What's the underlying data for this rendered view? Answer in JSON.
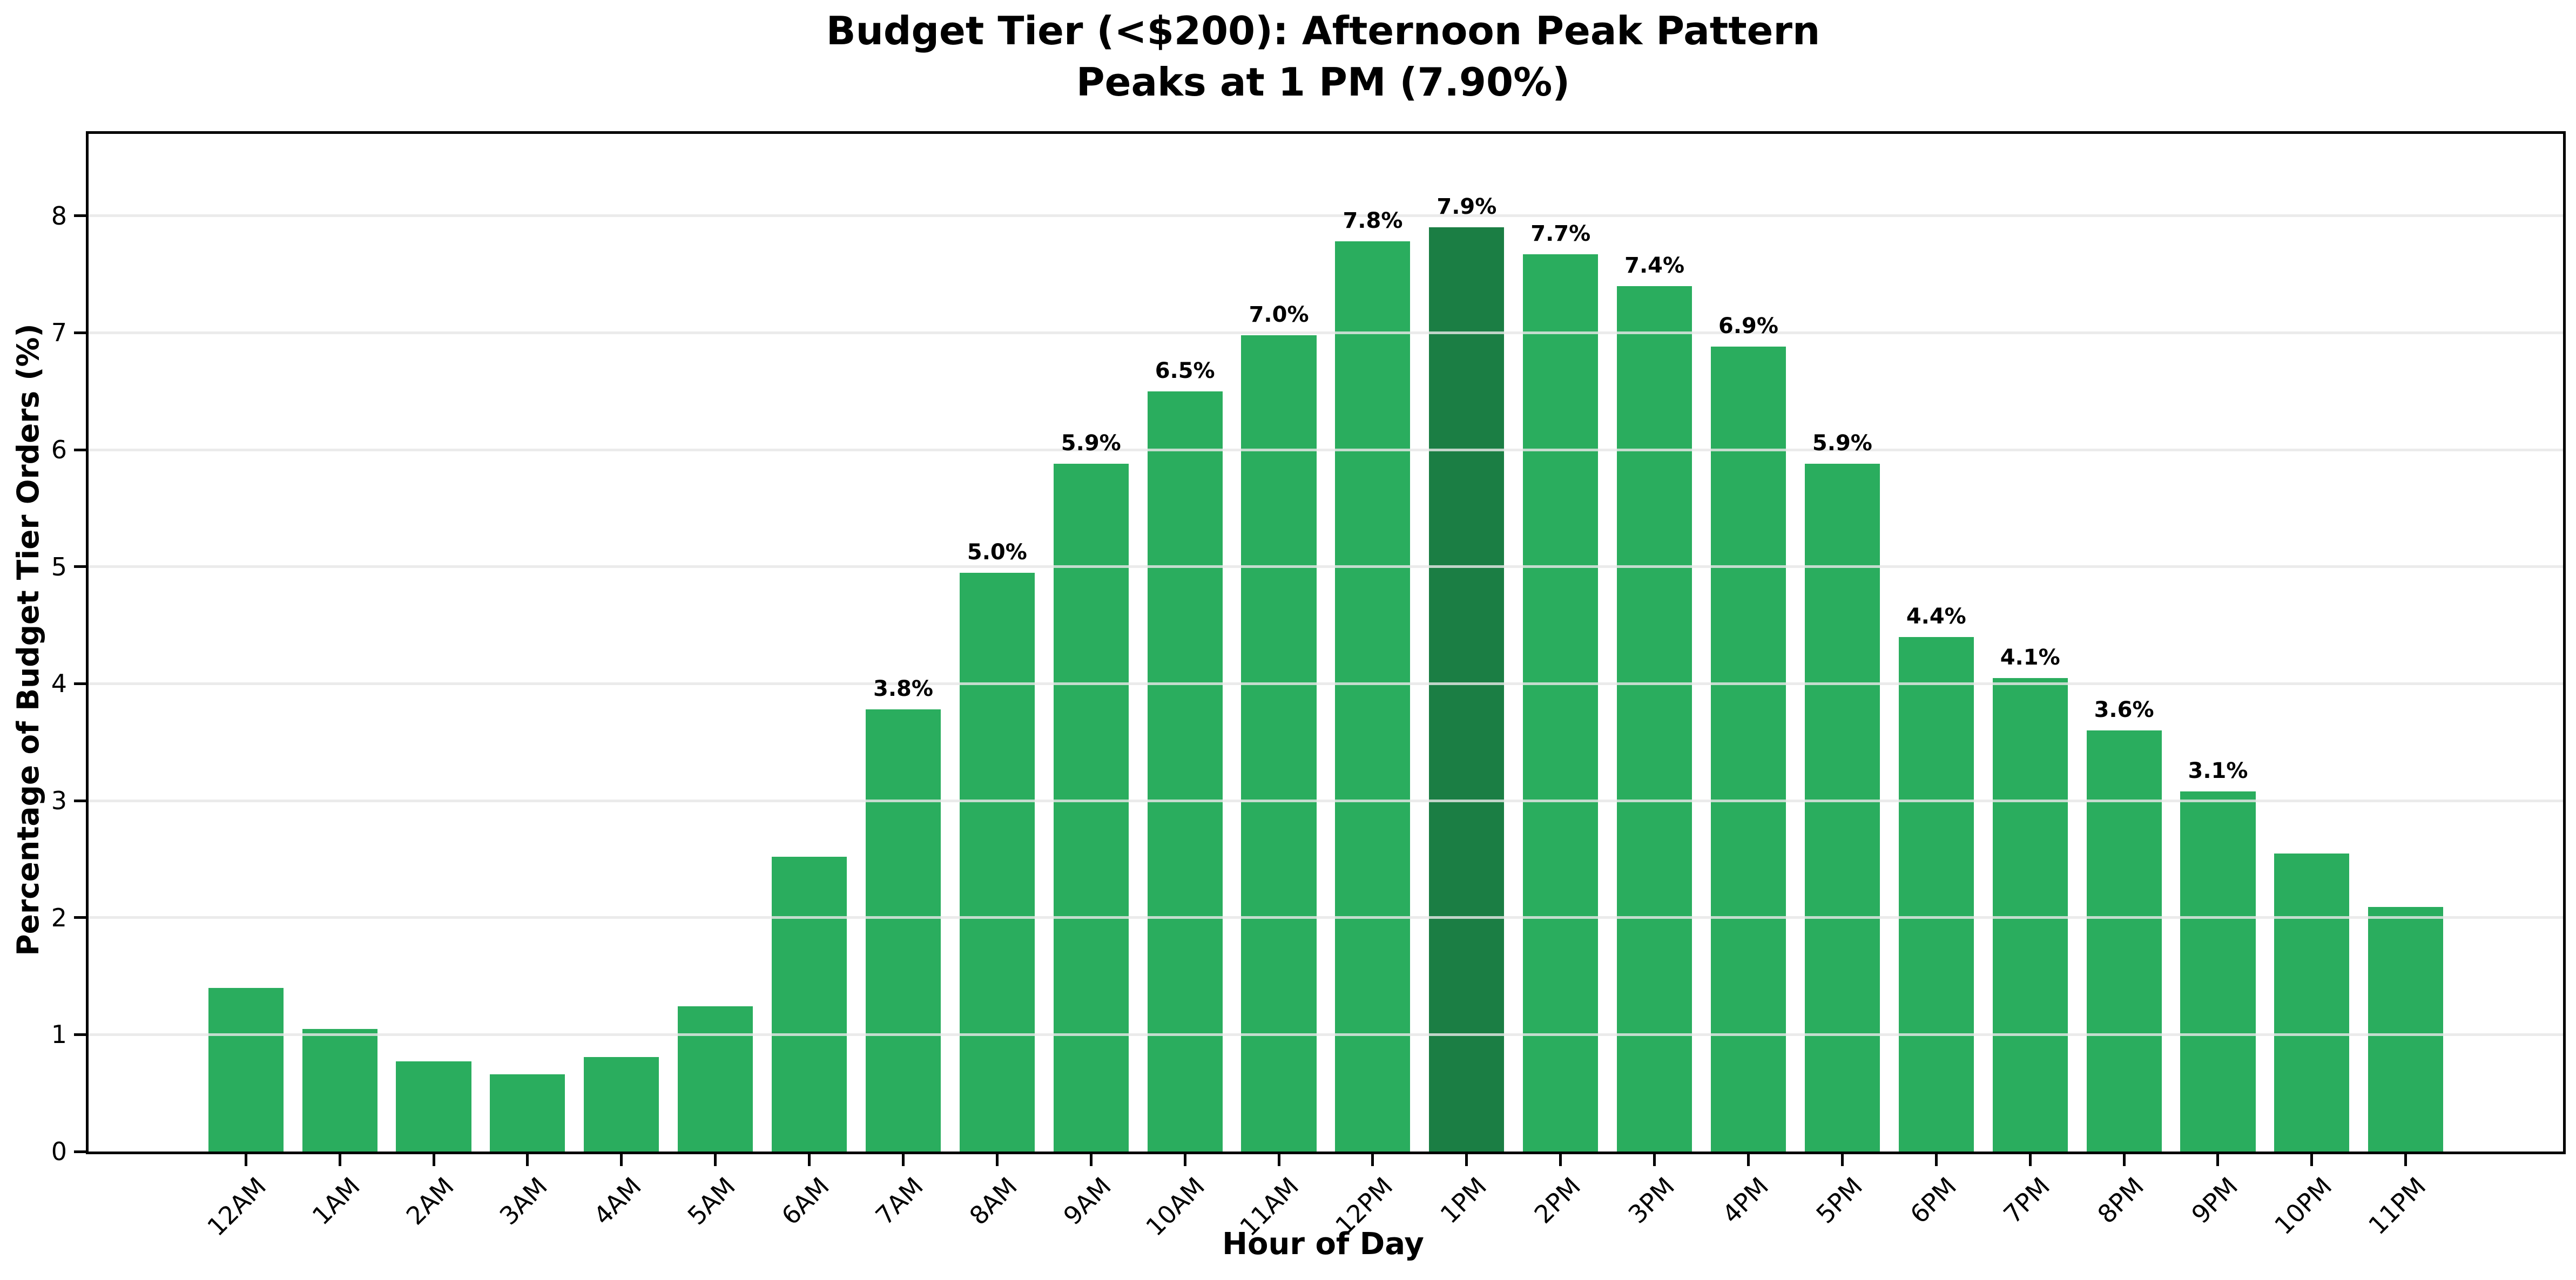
{
  "title": {
    "line1": "Budget Tier (<$200): Afternoon Peak Pattern",
    "line2": "Peaks at 1 PM (7.90%)"
  },
  "chart_data": {
    "type": "bar",
    "title": "Budget Tier (<$200): Afternoon Peak Pattern",
    "subtitle": "Peaks at 1 PM (7.90%)",
    "xlabel": "Hour of Day",
    "ylabel": "Percentage of Budget Tier Orders (%)",
    "categories": [
      "12AM",
      "1AM",
      "2AM",
      "3AM",
      "4AM",
      "5AM",
      "6AM",
      "7AM",
      "8AM",
      "9AM",
      "10AM",
      "11AM",
      "12PM",
      "1PM",
      "2PM",
      "3PM",
      "4PM",
      "5PM",
      "6PM",
      "7PM",
      "8PM",
      "9PM",
      "10PM",
      "11PM"
    ],
    "values": [
      1.4,
      1.05,
      0.77,
      0.66,
      0.81,
      1.24,
      2.52,
      3.78,
      4.95,
      5.88,
      6.5,
      6.98,
      7.78,
      7.9,
      7.67,
      7.4,
      6.88,
      5.88,
      4.4,
      4.05,
      3.6,
      3.08,
      2.55,
      2.09
    ],
    "bar_labels": [
      null,
      null,
      null,
      null,
      null,
      null,
      null,
      "3.8%",
      "5.0%",
      "5.9%",
      "6.5%",
      "7.0%",
      "7.8%",
      "7.9%",
      "7.7%",
      "7.4%",
      "6.9%",
      "5.9%",
      "4.4%",
      "4.1%",
      "3.6%",
      "3.1%",
      null,
      null
    ],
    "highlight_index": 13,
    "yticks": [
      0,
      1,
      2,
      3,
      4,
      5,
      6,
      7,
      8
    ],
    "ylim": [
      0,
      8.7
    ],
    "grid": "horizontal-over-bars",
    "legend": "none",
    "colors": {
      "bar": "#2aad5e",
      "bar_highlight": "#1b7e44",
      "grid": "#e7e7e7",
      "axis": "#000000",
      "text": "#000000",
      "background": "#ffffff"
    }
  }
}
